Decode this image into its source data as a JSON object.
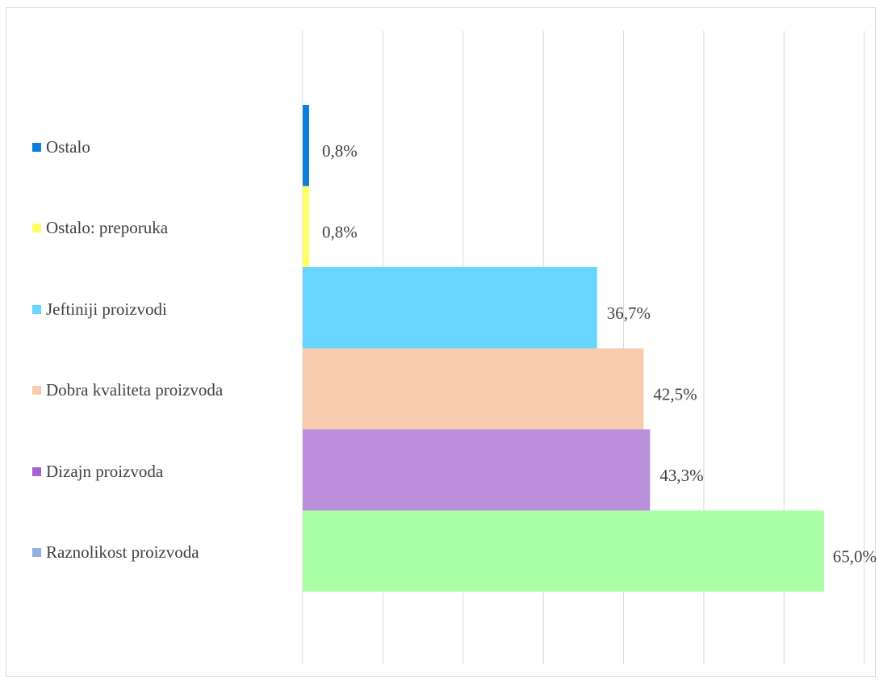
{
  "chart_data": {
    "type": "bar",
    "orientation": "horizontal",
    "categories": [
      "Ostalo",
      "Ostalo: preporuka",
      "Jeftiniji proizvodi",
      "Dobra kvaliteta proizvoda",
      "Dizajn proizvoda",
      "Raznolikost proizvoda"
    ],
    "values": [
      0.8,
      0.8,
      36.7,
      42.5,
      43.3,
      65.0
    ],
    "data_labels": [
      "0,8%",
      "0,8%",
      "36,7%",
      "42,5%",
      "43,3%",
      "65,0%"
    ],
    "unit": "%",
    "xlim": [
      0,
      70
    ],
    "x_gridline_step": 10,
    "grid": true,
    "legend": {
      "placement": "left",
      "entries": [
        {
          "label": "Ostalo",
          "color": "#0b7fd9"
        },
        {
          "label": "Ostalo: preporuka",
          "color": "#ffff66"
        },
        {
          "label": "Jeftiniji proizvodi",
          "color": "#66d5ff"
        },
        {
          "label": "Dobra kvaliteta proizvoda",
          "color": "#f7cbae"
        },
        {
          "label": "Dizajn proizvoda",
          "color": "#a663d1"
        },
        {
          "label": "Raznolikost proizvoda",
          "color": "#94b0de"
        }
      ]
    },
    "bar_colors": [
      "#0b7fd9",
      "#ffff66",
      "#66d5ff",
      "#f7cbae",
      "#bb8fdc",
      "#aaffa6"
    ],
    "gridline_color": "#d9d9d9",
    "text_color": "#404040"
  }
}
